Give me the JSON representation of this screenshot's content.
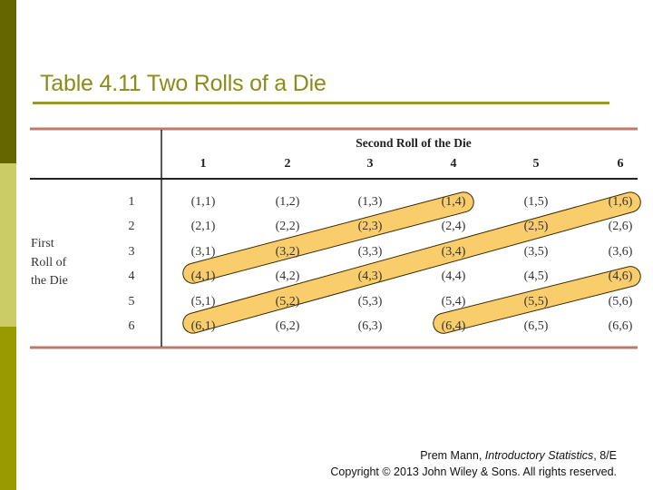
{
  "slide": {
    "title": "Table 4.11 Two Rolls of a Die",
    "colors": {
      "left_bar_top": "#666600",
      "left_bar_middle": "#CCCC66",
      "left_bar_bottom": "#999900",
      "title": "#8C8C1A",
      "title_rule": "#999933",
      "table_rule": "#C07868",
      "highlight_band": "#F9CD6C"
    }
  },
  "table": {
    "column_group_header": "Second Roll of the Die",
    "row_group_header_lines": [
      "First",
      "Roll of",
      "the Die"
    ],
    "column_headers": [
      "1",
      "2",
      "3",
      "4",
      "5",
      "6"
    ],
    "row_headers": [
      "1",
      "2",
      "3",
      "4",
      "5",
      "6"
    ],
    "cells": [
      [
        "(1,1)",
        "(1,2)",
        "(1,3)",
        "(1,4)",
        "(1,5)",
        "(1,6)"
      ],
      [
        "(2,1)",
        "(2,2)",
        "(2,3)",
        "(2,4)",
        "(2,5)",
        "(2,6)"
      ],
      [
        "(3,1)",
        "(3,2)",
        "(3,3)",
        "(3,4)",
        "(3,5)",
        "(3,6)"
      ],
      [
        "(4,1)",
        "(4,2)",
        "(4,3)",
        "(4,4)",
        "(4,5)",
        "(4,6)"
      ],
      [
        "(5,1)",
        "(5,2)",
        "(5,3)",
        "(5,4)",
        "(5,5)",
        "(5,6)"
      ],
      [
        "(6,1)",
        "(6,2)",
        "(6,3)",
        "(6,4)",
        "(6,5)",
        "(6,6)"
      ]
    ],
    "highlight_bands": [
      {
        "cells": [
          "(4,1)",
          "(3,2)",
          "(2,3)",
          "(1,4)"
        ]
      },
      {
        "cells": [
          "(6,1)",
          "(5,2)",
          "(4,3)",
          "(3,4)",
          "(2,5)",
          "(1,6)"
        ]
      },
      {
        "cells": [
          "(6,4)",
          "(5,5)",
          "(4,6)"
        ]
      }
    ]
  },
  "footer": {
    "author": "Prem Mann, ",
    "book": "Introductory Statistics",
    "edition": ", 8/E",
    "copyright": "Copyright © 2013 John Wiley & Sons. All rights reserved."
  }
}
